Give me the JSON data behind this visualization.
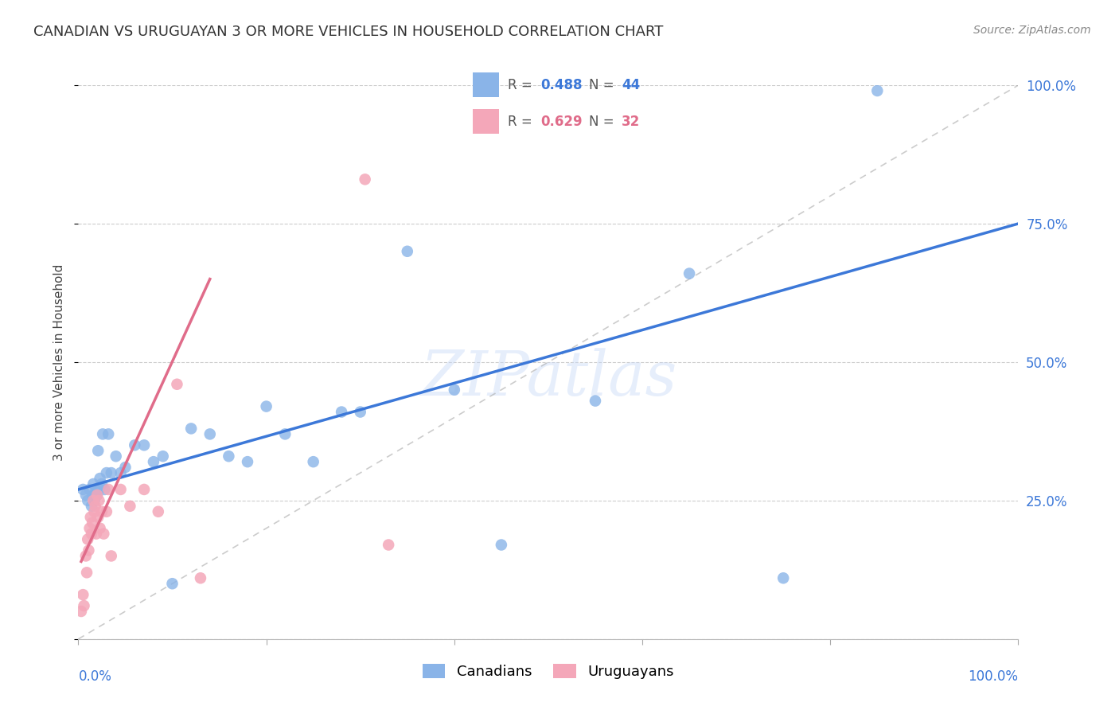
{
  "title": "CANADIAN VS URUGUAYAN 3 OR MORE VEHICLES IN HOUSEHOLD CORRELATION CHART",
  "source": "Source: ZipAtlas.com",
  "ylabel": "3 or more Vehicles in Household",
  "watermark": "ZIPatlas",
  "legend_blue_r": "0.488",
  "legend_blue_n": "44",
  "legend_pink_r": "0.629",
  "legend_pink_n": "32",
  "canadians_label": "Canadians",
  "uruguayans_label": "Uruguayans",
  "blue_color": "#8ab4e8",
  "pink_color": "#f4a7b9",
  "blue_line_color": "#3c78d8",
  "pink_line_color": "#e06c8a",
  "diagonal_color": "#aaaaaa",
  "grid_color": "#cccccc",
  "background_color": "#ffffff",
  "xmin": 0,
  "xmax": 100,
  "ymin": 0,
  "ymax": 100,
  "canadians_x": [
    0.5,
    0.8,
    1.0,
    1.2,
    1.4,
    1.5,
    1.6,
    1.7,
    1.8,
    1.9,
    2.0,
    2.1,
    2.2,
    2.3,
    2.5,
    2.6,
    2.8,
    3.0,
    3.2,
    3.5,
    4.0,
    4.5,
    5.0,
    6.0,
    7.0,
    8.0,
    9.0,
    10.0,
    12.0,
    14.0,
    16.0,
    18.0,
    20.0,
    22.0,
    25.0,
    28.0,
    30.0,
    35.0,
    40.0,
    45.0,
    55.0,
    65.0,
    75.0,
    85.0
  ],
  "canadians_y": [
    27,
    26,
    25,
    27,
    24,
    26,
    28,
    25,
    26,
    27,
    26,
    34,
    27,
    29,
    28,
    37,
    27,
    30,
    37,
    30,
    33,
    30,
    31,
    35,
    35,
    32,
    33,
    10,
    38,
    37,
    33,
    32,
    42,
    37,
    32,
    41,
    41,
    70,
    45,
    17,
    43,
    66,
    11,
    99
  ],
  "uruguayans_x": [
    0.3,
    0.5,
    0.6,
    0.8,
    0.9,
    1.0,
    1.1,
    1.2,
    1.3,
    1.4,
    1.5,
    1.6,
    1.7,
    1.8,
    1.9,
    2.0,
    2.1,
    2.2,
    2.3,
    2.5,
    2.7,
    3.0,
    3.2,
    3.5,
    4.5,
    5.5,
    7.0,
    8.5,
    10.5,
    13.0,
    30.5,
    33.0
  ],
  "uruguayans_y": [
    5,
    8,
    6,
    15,
    12,
    18,
    16,
    20,
    22,
    19,
    21,
    25,
    23,
    24,
    19,
    26,
    22,
    25,
    20,
    23,
    19,
    23,
    27,
    15,
    27,
    24,
    27,
    23,
    46,
    11,
    83,
    17
  ],
  "blue_line_x": [
    0,
    100
  ],
  "blue_line_y": [
    27,
    75
  ],
  "pink_line_x": [
    0.3,
    14
  ],
  "pink_line_y": [
    14,
    65
  ]
}
